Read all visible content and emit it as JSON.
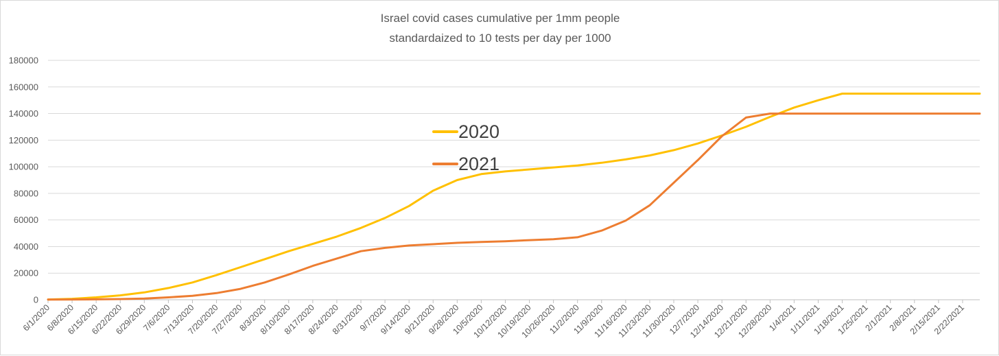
{
  "chart_data": {
    "type": "line",
    "title": [
      "Israel covid cases cumulative per 1mm people",
      "standardaized to 10 tests per day per 1000"
    ],
    "xlabel": "",
    "ylabel": "",
    "ylim": [
      0,
      180000
    ],
    "yticks": [
      0,
      20000,
      40000,
      60000,
      80000,
      100000,
      120000,
      140000,
      160000,
      180000
    ],
    "grid": true,
    "legend_position": "center-left",
    "x_tick_labels": [
      "6/1/2020",
      "6/8/2020",
      "6/15/2020",
      "6/22/2020",
      "6/29/2020",
      "7/6/2020",
      "7/13/2020",
      "7/20/2020",
      "7/27/2020",
      "8/3/2020",
      "8/10/2020",
      "8/17/2020",
      "8/24/2020",
      "8/31/2020",
      "9/7/2020",
      "9/14/2020",
      "9/21/2020",
      "9/28/2020",
      "10/5/2020",
      "10/12/2020",
      "10/19/2020",
      "10/26/2020",
      "11/2/2020",
      "11/9/2020",
      "11/16/2020",
      "11/23/2020",
      "11/30/2020",
      "12/7/2020",
      "12/14/2020",
      "12/21/2020",
      "12/28/2020",
      "1/4/2021",
      "1/11/2021",
      "1/18/2021",
      "1/25/2021",
      "2/1/2021",
      "2/8/2021",
      "2/15/2021",
      "2/22/2021"
    ],
    "day_count": 272,
    "series": [
      {
        "name": "2020",
        "color": "#ffc000",
        "day": [
          0,
          7,
          14,
          21,
          28,
          35,
          42,
          49,
          56,
          63,
          70,
          77,
          84,
          91,
          98,
          105,
          112,
          119,
          126,
          133,
          140,
          147,
          154,
          161,
          168,
          175,
          182,
          189,
          196,
          203,
          210,
          217,
          224,
          231,
          238,
          245,
          252,
          259,
          266,
          271
        ],
        "values": [
          200,
          700,
          1800,
          3300,
          5500,
          8800,
          13000,
          18500,
          24500,
          30500,
          36500,
          42000,
          47500,
          54000,
          61500,
          70500,
          82000,
          90000,
          94500,
          96500,
          98000,
          99500,
          101000,
          103000,
          105500,
          108500,
          112500,
          117500,
          123500,
          130000,
          137500,
          144500,
          150000,
          155000,
          155000,
          155000,
          155000,
          155000,
          155000,
          155000
        ]
      },
      {
        "name": "2021",
        "color": "#ed7d31",
        "day": [
          0,
          7,
          14,
          21,
          28,
          35,
          42,
          49,
          56,
          63,
          70,
          77,
          84,
          91,
          98,
          105,
          112,
          119,
          126,
          133,
          140,
          147,
          154,
          161,
          168,
          175,
          182,
          189,
          196,
          203,
          210,
          217,
          224,
          231,
          238,
          245,
          252,
          259,
          266,
          271
        ],
        "values": [
          100,
          200,
          300,
          500,
          900,
          1800,
          3000,
          5000,
          8200,
          13000,
          19000,
          25500,
          31000,
          36500,
          39000,
          40800,
          41800,
          42800,
          43500,
          44000,
          44800,
          45500,
          47000,
          52000,
          59500,
          71000,
          88000,
          105000,
          123000,
          137000,
          140000,
          140000,
          140000,
          140000,
          140000,
          140000,
          140000,
          140000,
          140000,
          140000
        ]
      }
    ]
  }
}
